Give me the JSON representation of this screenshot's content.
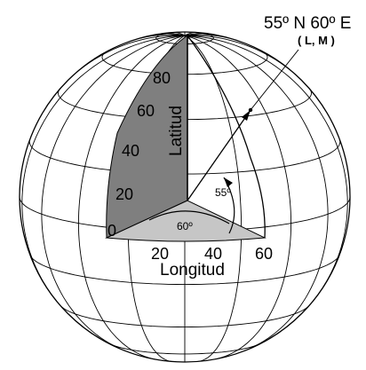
{
  "point": {
    "name": "55º N 60º E",
    "coords": "( L, M )"
  },
  "angles": {
    "latitude": "55º",
    "longitude": "60º"
  },
  "latitude_axis": {
    "title": "Latitud",
    "ticks": [
      "0",
      "20",
      "40",
      "60",
      "80"
    ]
  },
  "longitude_axis": {
    "title": "Longitud",
    "ticks": [
      "20",
      "40",
      "60"
    ]
  },
  "colors": {
    "latitude_sector": "#7f7f7f",
    "longitude_sector": "#c6c6c6",
    "grid_lines": "#000000",
    "background": "#ffffff"
  }
}
